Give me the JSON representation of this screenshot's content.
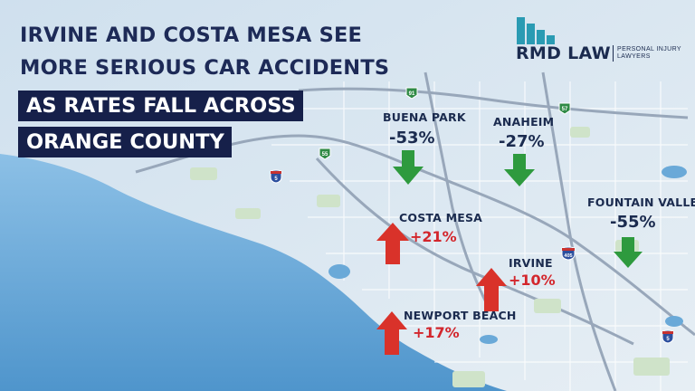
{
  "headline": {
    "line1": "IRVINE AND COSTA MESA SEE",
    "line2": "MORE SERIOUS CAR ACCIDENTS",
    "line3": "AS RATES FALL ACROSS",
    "line4": "ORANGE COUNTY"
  },
  "logo": {
    "name": "RMD LAW",
    "tagline": "PERSONAL INJURY LAWYERS",
    "bar_color": "#2a9bb3"
  },
  "colors": {
    "decrease": "#2e9a3e",
    "increase": "#d9322a",
    "navy": "#16204a",
    "water": "#5a9ed3",
    "land": "#e2eaf0"
  },
  "cities": [
    {
      "name": "BUENA PARK",
      "change": "-53%",
      "direction": "down"
    },
    {
      "name": "ANAHEIM",
      "change": "-27%",
      "direction": "down"
    },
    {
      "name": "FOUNTAIN VALLEY",
      "change": "-55%",
      "direction": "down"
    },
    {
      "name": "COSTA MESA",
      "change": "+21%",
      "direction": "up"
    },
    {
      "name": "IRVINE",
      "change": "+10%",
      "direction": "up"
    },
    {
      "name": "NEWPORT BEACH",
      "change": "+17%",
      "direction": "up"
    }
  ],
  "route_shields": [
    {
      "label": "91",
      "type": "state"
    },
    {
      "label": "57",
      "type": "state"
    },
    {
      "label": "55",
      "type": "state"
    },
    {
      "label": "5",
      "type": "interstate"
    },
    {
      "label": "405",
      "type": "interstate"
    },
    {
      "label": "5",
      "type": "interstate"
    }
  ]
}
